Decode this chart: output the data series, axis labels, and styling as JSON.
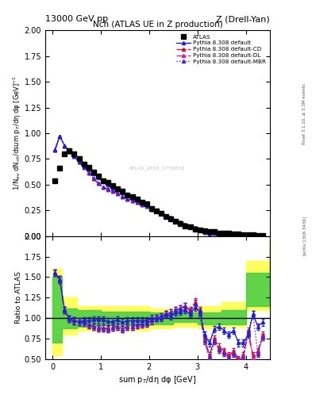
{
  "title_main": "Nch (ATLAS UE in Z production)",
  "top_left_label": "13000 GeV pp",
  "top_right_label": "Z (Drell-Yan)",
  "right_label_top": "Rivet 3.1.10, ≥ 3.3M events",
  "right_label_bottom": "[arXiv:1306.3436]",
  "watermark": "ATLAS_2019_I1736531",
  "ylabel_main": "1/N$_{ev}$ dN$_{ch}$/dsum p$_T$/dη dφ [GeV]$^{-1}$",
  "ylabel_ratio": "Ratio to ATLAS",
  "xlabel": "sum p$_T$/dη dφ [GeV]",
  "ylim_main": [
    0.0,
    2.0
  ],
  "ylim_ratio": [
    0.5,
    2.0
  ],
  "xlim": [
    -0.15,
    4.5
  ],
  "atlas_x": [
    0.05,
    0.15,
    0.25,
    0.35,
    0.45,
    0.55,
    0.65,
    0.75,
    0.85,
    0.95,
    1.05,
    1.15,
    1.25,
    1.35,
    1.45,
    1.55,
    1.65,
    1.75,
    1.85,
    1.95,
    2.05,
    2.15,
    2.25,
    2.35,
    2.45,
    2.55,
    2.65,
    2.75,
    2.85,
    2.95,
    3.05,
    3.15,
    3.25,
    3.35,
    3.45,
    3.55,
    3.65,
    3.75,
    3.85,
    3.95,
    4.05,
    4.15,
    4.25,
    4.35
  ],
  "atlas_y": [
    0.54,
    0.66,
    0.8,
    0.83,
    0.8,
    0.75,
    0.7,
    0.67,
    0.62,
    0.58,
    0.54,
    0.52,
    0.49,
    0.46,
    0.44,
    0.4,
    0.38,
    0.36,
    0.33,
    0.31,
    0.27,
    0.24,
    0.22,
    0.19,
    0.17,
    0.14,
    0.12,
    0.1,
    0.09,
    0.07,
    0.06,
    0.05,
    0.04,
    0.04,
    0.03,
    0.03,
    0.025,
    0.02,
    0.02,
    0.015,
    0.012,
    0.01,
    0.008,
    0.006
  ],
  "ratio_default_y": [
    1.55,
    1.47,
    1.1,
    0.99,
    0.97,
    0.96,
    0.97,
    0.97,
    0.98,
    0.98,
    0.98,
    0.96,
    0.96,
    0.98,
    0.95,
    0.97,
    0.97,
    0.97,
    0.97,
    0.97,
    1.0,
    1.0,
    1.0,
    1.05,
    1.02,
    1.07,
    1.08,
    1.1,
    1.05,
    1.13,
    1.08,
    0.8,
    0.7,
    0.87,
    0.9,
    0.85,
    0.8,
    0.85,
    0.7,
    0.7,
    0.8,
    1.05,
    0.9,
    0.95
  ],
  "ratio_cd_y": [
    1.55,
    1.47,
    1.1,
    0.99,
    0.97,
    0.96,
    0.95,
    0.92,
    0.9,
    0.88,
    0.88,
    0.88,
    0.89,
    0.9,
    0.87,
    0.9,
    0.9,
    0.92,
    0.93,
    0.94,
    0.97,
    1.0,
    1.02,
    1.05,
    1.07,
    1.1,
    1.12,
    1.15,
    1.1,
    1.2,
    1.1,
    0.75,
    0.55,
    0.75,
    0.65,
    0.6,
    0.55,
    0.6,
    0.5,
    0.55,
    0.85,
    0.55,
    0.6,
    0.8
  ],
  "ratio_dl_y": [
    1.55,
    1.47,
    1.1,
    0.99,
    0.97,
    0.96,
    0.95,
    0.92,
    0.9,
    0.88,
    0.88,
    0.87,
    0.89,
    0.9,
    0.87,
    0.9,
    0.9,
    0.92,
    0.93,
    0.94,
    0.97,
    1.0,
    1.02,
    1.05,
    1.07,
    1.1,
    1.12,
    1.15,
    1.08,
    1.18,
    1.05,
    0.72,
    0.52,
    0.72,
    0.62,
    0.58,
    0.52,
    0.57,
    0.48,
    0.52,
    0.82,
    0.52,
    0.57,
    0.77
  ],
  "ratio_mbr_y": [
    1.55,
    1.47,
    1.1,
    0.99,
    0.97,
    0.96,
    0.95,
    0.92,
    0.9,
    0.88,
    0.88,
    0.87,
    0.89,
    0.9,
    0.87,
    0.9,
    0.9,
    0.92,
    0.93,
    0.94,
    0.97,
    1.0,
    1.02,
    1.05,
    1.07,
    1.1,
    1.12,
    1.15,
    1.08,
    1.18,
    1.05,
    0.72,
    0.52,
    0.72,
    0.62,
    0.58,
    0.52,
    0.57,
    0.48,
    0.52,
    0.82,
    1.05,
    0.57,
    0.77
  ],
  "band_x_edges": [
    0.0,
    0.2,
    0.5,
    1.0,
    1.5,
    2.0,
    2.5,
    3.0,
    3.5,
    4.0,
    4.5
  ],
  "band_yellow_low": [
    0.55,
    0.8,
    0.85,
    0.85,
    0.85,
    0.88,
    0.9,
    0.88,
    0.9,
    1.1,
    1.5
  ],
  "band_yellow_high": [
    1.6,
    1.25,
    1.15,
    1.15,
    1.15,
    1.12,
    1.12,
    1.15,
    1.2,
    1.7,
    2.1
  ],
  "band_green_low": [
    0.7,
    0.88,
    0.9,
    0.92,
    0.92,
    0.93,
    0.95,
    0.93,
    0.93,
    1.15,
    1.6
  ],
  "band_green_high": [
    1.5,
    1.12,
    1.1,
    1.08,
    1.08,
    1.07,
    1.07,
    1.07,
    1.1,
    1.55,
    1.95
  ],
  "color_atlas": "#000000",
  "color_default": "#2222cc",
  "color_cd": "#cc1133",
  "color_dl": "#cc22aa",
  "color_mbr": "#5522cc",
  "color_yellow": "#ffff44",
  "color_green": "#44cc44",
  "legend_labels": [
    "ATLAS",
    "Pythia 8.308 default",
    "Pythia 8.308 default-CD",
    "Pythia 8.308 default-DL",
    "Pythia 8.308 default-MBR"
  ]
}
